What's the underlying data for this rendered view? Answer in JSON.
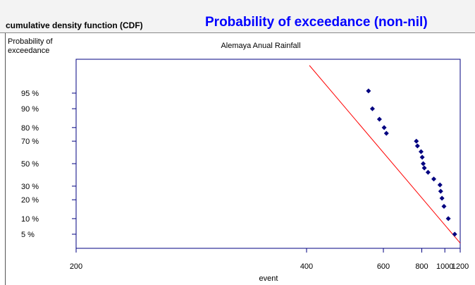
{
  "header": {
    "left_title": "cumulative density function (CDF)",
    "main_title": "Probability of exceedance (non-nil)"
  },
  "chart_data": {
    "type": "scatter",
    "title": "Alemaya Anual Rainfall",
    "xlabel": "event",
    "ylabel": "Probability of exceedance",
    "x_scale": "reciprocal",
    "y_scale": "probability",
    "xlim": [
      200,
      1200
    ],
    "x_ticks": [
      200,
      400,
      600,
      800,
      1000,
      1200
    ],
    "y_ticks": [
      {
        "p": 95,
        "label": "95 %"
      },
      {
        "p": 90,
        "label": "90 %"
      },
      {
        "p": 80,
        "label": "80 %"
      },
      {
        "p": 70,
        "label": "70 %"
      },
      {
        "p": 50,
        "label": "50 %"
      },
      {
        "p": 30,
        "label": "30 %"
      },
      {
        "p": 20,
        "label": "20 %"
      },
      {
        "p": 10,
        "label": "10 %"
      },
      {
        "p": 5,
        "label": "5 %"
      }
    ],
    "points": [
      {
        "x": 547,
        "y": 95.5
      },
      {
        "x": 560,
        "y": 90
      },
      {
        "x": 585,
        "y": 85
      },
      {
        "x": 603,
        "y": 80
      },
      {
        "x": 612,
        "y": 76
      },
      {
        "x": 764,
        "y": 70
      },
      {
        "x": 771,
        "y": 66
      },
      {
        "x": 795,
        "y": 61
      },
      {
        "x": 803,
        "y": 56
      },
      {
        "x": 810,
        "y": 50
      },
      {
        "x": 818,
        "y": 46
      },
      {
        "x": 846,
        "y": 42
      },
      {
        "x": 893,
        "y": 36
      },
      {
        "x": 950,
        "y": 31
      },
      {
        "x": 957,
        "y": 26
      },
      {
        "x": 970,
        "y": 21
      },
      {
        "x": 991,
        "y": 16
      },
      {
        "x": 1039,
        "y": 10
      },
      {
        "x": 1120,
        "y": 5
      }
    ],
    "fit_line": [
      {
        "x": 405,
        "y": 98.9
      },
      {
        "x": 1200,
        "y": 3.2
      }
    ],
    "colors": {
      "points": "#000080",
      "fit_line": "#ff0000",
      "axes": "#000080",
      "title": "#0000ff"
    },
    "grid": false,
    "legend": "none"
  }
}
